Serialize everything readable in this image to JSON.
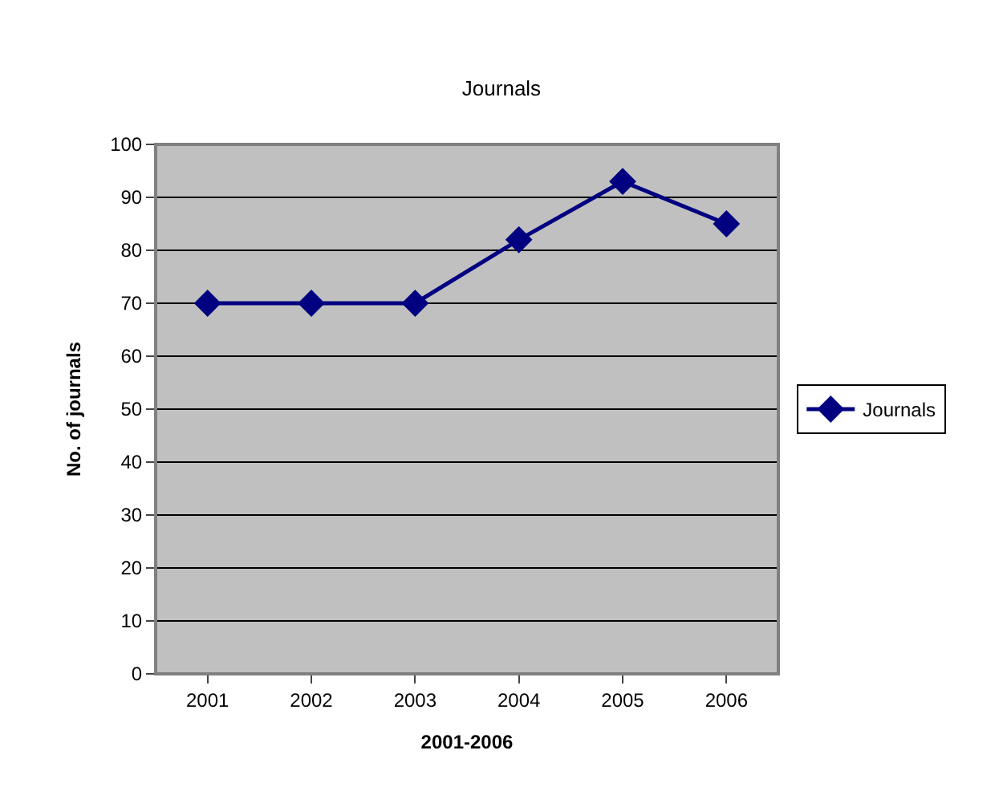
{
  "chart_data": {
    "type": "line",
    "title": "Journals",
    "xlabel": "2001-2006",
    "ylabel": "No. of journals",
    "categories": [
      "2001",
      "2002",
      "2003",
      "2004",
      "2005",
      "2006"
    ],
    "series": [
      {
        "name": "Journals",
        "color": "#000080",
        "values": [
          70,
          70,
          70,
          82,
          93,
          85
        ]
      }
    ],
    "ylim": [
      0,
      100
    ],
    "yticks": [
      0,
      10,
      20,
      30,
      40,
      50,
      60,
      70,
      80,
      90,
      100
    ],
    "grid": "y",
    "legend": "right",
    "marker": "diamond",
    "line_style": "solid"
  }
}
